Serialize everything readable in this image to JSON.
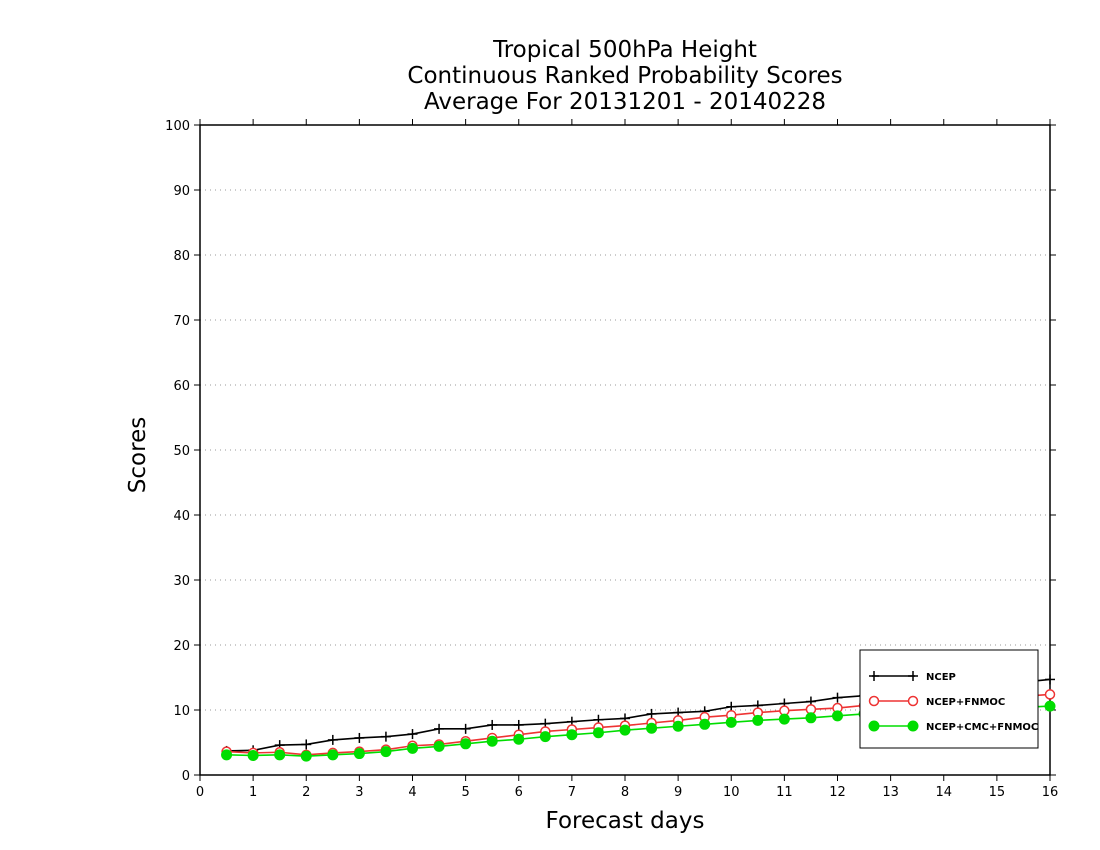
{
  "chart_data": {
    "type": "line",
    "title": [
      "Tropical 500hPa Height",
      "Continuous Ranked Probability Scores",
      "Average For 20131201 - 20140228"
    ],
    "xlabel": "Forecast days",
    "ylabel": "Scores",
    "xlim": [
      0,
      16
    ],
    "ylim": [
      0,
      100
    ],
    "xticks": [
      0,
      1,
      2,
      3,
      4,
      5,
      6,
      7,
      8,
      9,
      10,
      11,
      12,
      13,
      14,
      15,
      16
    ],
    "yticks": [
      0,
      10,
      20,
      30,
      40,
      50,
      60,
      70,
      80,
      90,
      100
    ],
    "grid": "horizontal-dotted",
    "legend_position": "bottom-right",
    "x": [
      0.5,
      1,
      1.5,
      2,
      2.5,
      3,
      3.5,
      4,
      4.5,
      5,
      5.5,
      6,
      6.5,
      7,
      7.5,
      8,
      8.5,
      9,
      9.5,
      10,
      10.5,
      11,
      11.5,
      12,
      12.5,
      13,
      13.5,
      14,
      14.5,
      15,
      15.5,
      16
    ],
    "series": [
      {
        "name": "NCEP",
        "color": "#000000",
        "marker": "plus",
        "values": [
          3.7,
          3.8,
          4.6,
          4.7,
          5.4,
          5.7,
          5.9,
          6.3,
          7.1,
          7.1,
          7.7,
          7.7,
          7.9,
          8.2,
          8.5,
          8.7,
          9.4,
          9.6,
          9.8,
          10.5,
          10.7,
          11.0,
          11.3,
          11.9,
          12.2,
          12.5,
          12.8,
          13.2,
          13.6,
          14.0,
          14.3,
          14.7
        ]
      },
      {
        "name": "NCEP+FNMOC",
        "color": "#ee3333",
        "marker": "open-circle",
        "values": [
          3.6,
          3.4,
          3.5,
          3.1,
          3.4,
          3.6,
          3.9,
          4.5,
          4.7,
          5.2,
          5.7,
          6.2,
          6.7,
          7.0,
          7.3,
          7.6,
          8.0,
          8.4,
          8.9,
          9.2,
          9.6,
          9.9,
          10.1,
          10.3,
          10.7,
          10.9,
          11.1,
          11.4,
          11.7,
          11.9,
          12.1,
          12.4
        ]
      },
      {
        "name": "NCEP+CMC+FNMOC",
        "color": "#00dd00",
        "marker": "filled-circle",
        "values": [
          3.1,
          3.0,
          3.1,
          2.9,
          3.1,
          3.3,
          3.6,
          4.1,
          4.4,
          4.8,
          5.2,
          5.5,
          5.9,
          6.2,
          6.5,
          6.9,
          7.2,
          7.5,
          7.8,
          8.1,
          8.4,
          8.6,
          8.8,
          9.1,
          9.4,
          9.6,
          9.8,
          10.0,
          10.2,
          10.3,
          10.4,
          10.6
        ]
      }
    ]
  }
}
